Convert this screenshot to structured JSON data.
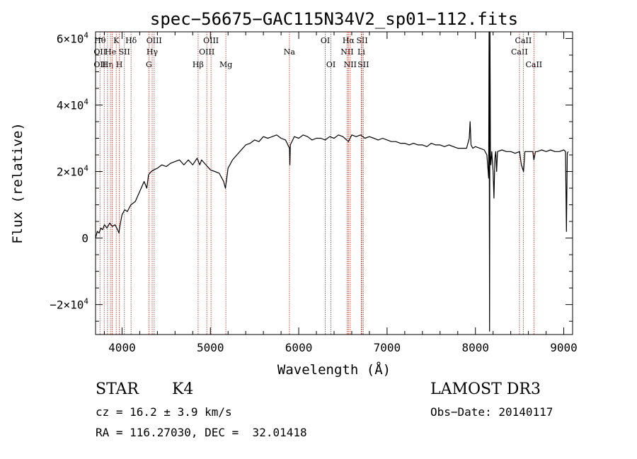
{
  "chart_data": {
    "type": "line",
    "title": "spec−56675−GAC115N34V2_sp01−112.fits",
    "xlabel": "Wavelength (Å)",
    "ylabel": "Flux (relative)",
    "xlim": [
      3700,
      9100
    ],
    "ylim": [
      -29000,
      62000
    ],
    "x_ticks": [
      {
        "value": 4000,
        "label": "4000"
      },
      {
        "value": 5000,
        "label": "5000"
      },
      {
        "value": 6000,
        "label": "6000"
      },
      {
        "value": 7000,
        "label": "7000"
      },
      {
        "value": 8000,
        "label": "8000"
      },
      {
        "value": 9000,
        "label": "9000"
      }
    ],
    "y_ticks": [
      {
        "value": -20000,
        "mant": "−2×10",
        "exp": "4"
      },
      {
        "value": 0,
        "mant": "0",
        "exp": ""
      },
      {
        "value": 20000,
        "mant": "2×10",
        "exp": "4"
      },
      {
        "value": 40000,
        "mant": "4×10",
        "exp": "4"
      },
      {
        "value": 60000,
        "mant": "6×10",
        "exp": "4"
      }
    ],
    "series": [
      {
        "name": "flux",
        "x": [
          3700,
          3720,
          3740,
          3760,
          3780,
          3800,
          3830,
          3860,
          3890,
          3920,
          3950,
          3965,
          3975,
          4000,
          4030,
          4060,
          4100,
          4150,
          4200,
          4250,
          4280,
          4300,
          4330,
          4360,
          4400,
          4450,
          4500,
          4550,
          4600,
          4650,
          4700,
          4750,
          4800,
          4850,
          4880,
          4900,
          4950,
          5000,
          5050,
          5100,
          5150,
          5170,
          5185,
          5200,
          5250,
          5300,
          5350,
          5400,
          5450,
          5500,
          5550,
          5600,
          5650,
          5700,
          5750,
          5800,
          5850,
          5895,
          5900,
          5905,
          5950,
          6000,
          6050,
          6100,
          6150,
          6200,
          6250,
          6300,
          6350,
          6400,
          6450,
          6500,
          6563,
          6600,
          6650,
          6700,
          6750,
          6800,
          6850,
          6900,
          6950,
          7000,
          7050,
          7100,
          7150,
          7200,
          7250,
          7300,
          7350,
          7400,
          7450,
          7500,
          7550,
          7600,
          7650,
          7700,
          7750,
          7800,
          7850,
          7900,
          7930,
          7940,
          7950,
          7970,
          8000,
          8050,
          8100,
          8130,
          8150,
          8155,
          8160,
          8165,
          8170,
          8175,
          8185,
          8200,
          8210,
          8220,
          8230,
          8240,
          8250,
          8300,
          8350,
          8400,
          8450,
          8500,
          8520,
          8545,
          8560,
          8600,
          8650,
          8662,
          8680,
          8700,
          8750,
          8800,
          8850,
          8900,
          8950,
          9000,
          9020,
          9030,
          9040,
          9050
        ],
        "y": [
          0,
          2000,
          1500,
          3000,
          2500,
          4000,
          3000,
          4500,
          3500,
          4000,
          2500,
          1500,
          3500,
          7000,
          8500,
          8000,
          10000,
          11000,
          14000,
          17000,
          15000,
          19000,
          20000,
          20500,
          21000,
          22000,
          21500,
          22500,
          23000,
          23500,
          22000,
          23500,
          22000,
          24000,
          22000,
          23500,
          22000,
          20500,
          20000,
          19500,
          17000,
          15000,
          18000,
          21000,
          23500,
          25000,
          26500,
          28000,
          28500,
          29500,
          29000,
          30500,
          30000,
          30500,
          31000,
          30000,
          29500,
          27000,
          22000,
          28000,
          30500,
          30000,
          31000,
          30500,
          29500,
          30000,
          30000,
          29500,
          30500,
          30000,
          31000,
          30500,
          29000,
          31000,
          30500,
          31000,
          30000,
          30500,
          30000,
          29500,
          30000,
          29500,
          29000,
          29000,
          28500,
          28500,
          28000,
          28500,
          28000,
          28000,
          27500,
          28500,
          28000,
          28000,
          27500,
          28000,
          27500,
          27000,
          27000,
          27000,
          30000,
          35000,
          28000,
          27000,
          27500,
          27000,
          26500,
          25000,
          18000,
          62000,
          -28000,
          62000,
          25000,
          22000,
          26000,
          20000,
          12000,
          24000,
          26000,
          20000,
          26000,
          26500,
          26000,
          26000,
          25500,
          26000,
          22000,
          20000,
          26000,
          26000,
          26000,
          23500,
          26000,
          26000,
          26500,
          26000,
          26500,
          26000,
          26000,
          26500,
          26000,
          2000,
          25500,
          26000
        ]
      }
    ],
    "lines": [
      {
        "x": 3750,
        "labels": [
          {
            "text": "Hθ",
            "row": 0
          },
          {
            "text": "OII",
            "row": 1
          },
          {
            "text": "OII",
            "row": 2
          }
        ]
      },
      {
        "x": 3798,
        "labels": []
      },
      {
        "x": 3835,
        "labels": [
          {
            "text": "Hη",
            "row": 2
          }
        ]
      },
      {
        "x": 3869,
        "labels": [
          {
            "text": "He",
            "row": 1
          }
        ]
      },
      {
        "x": 3889,
        "labels": []
      },
      {
        "x": 3934,
        "labels": [
          {
            "text": "K",
            "row": 0
          }
        ]
      },
      {
        "x": 3969,
        "labels": [
          {
            "text": "H",
            "row": 2
          }
        ]
      },
      {
        "x": 4026,
        "labels": [
          {
            "text": "SII",
            "row": 1
          }
        ]
      },
      {
        "x": 4102,
        "labels": [
          {
            "text": "Hδ",
            "row": 0
          }
        ]
      },
      {
        "x": 4304,
        "labels": [
          {
            "text": "G",
            "row": 2
          }
        ]
      },
      {
        "x": 4341,
        "labels": [
          {
            "text": "Hγ",
            "row": 1
          }
        ]
      },
      {
        "x": 4363,
        "labels": [
          {
            "text": "OIII",
            "row": 0
          }
        ]
      },
      {
        "x": 4861,
        "labels": [
          {
            "text": "Hβ",
            "row": 2
          }
        ]
      },
      {
        "x": 4959,
        "labels": [
          {
            "text": "OIII",
            "row": 1
          }
        ]
      },
      {
        "x": 5007,
        "labels": [
          {
            "text": "OIII",
            "row": 0
          }
        ]
      },
      {
        "x": 5175,
        "labels": [
          {
            "text": "Mg",
            "row": 2
          }
        ]
      },
      {
        "x": 5894,
        "labels": [
          {
            "text": "Na",
            "row": 1
          }
        ]
      },
      {
        "x": 6300,
        "labels": [
          {
            "text": "OI",
            "row": 0
          }
        ]
      },
      {
        "x": 6364,
        "labels": [
          {
            "text": "OI",
            "row": 2
          }
        ]
      },
      {
        "x": 6548,
        "labels": [
          {
            "text": "NII",
            "row": 1
          }
        ]
      },
      {
        "x": 6563,
        "labels": [
          {
            "text": "Hα",
            "row": 0
          }
        ]
      },
      {
        "x": 6583,
        "labels": [
          {
            "text": "NII",
            "row": 2
          }
        ]
      },
      {
        "x": 6708,
        "labels": [
          {
            "text": "Li",
            "row": 1
          }
        ]
      },
      {
        "x": 6717,
        "labels": [
          {
            "text": "SII",
            "row": 0
          }
        ]
      },
      {
        "x": 6731,
        "labels": [
          {
            "text": "SII",
            "row": 2
          }
        ]
      },
      {
        "x": 8498,
        "labels": [
          {
            "text": "CaII",
            "row": 1
          }
        ]
      },
      {
        "x": 8542,
        "labels": [
          {
            "text": "CaII",
            "row": 0
          }
        ]
      },
      {
        "x": 8662,
        "labels": [
          {
            "text": "CaII",
            "row": 2
          }
        ]
      }
    ]
  },
  "info": {
    "object_class": "STAR",
    "subclass": "K4",
    "survey": "LAMOST DR3",
    "cz": "cz = 16.2 ± 3.9 km/s",
    "obs_date": "Obs−Date: 20140117",
    "coords": "RA = 116.27030, DEC =  32.01418"
  },
  "colors": {
    "line_marker": "#c0392b",
    "spectrum": "#000000"
  }
}
